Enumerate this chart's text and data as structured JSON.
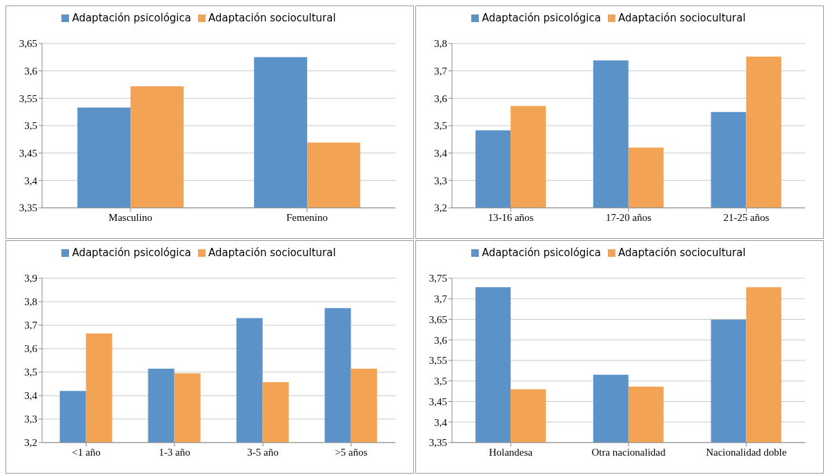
{
  "chart_data": [
    {
      "type": "bar",
      "categories": [
        "Masculino",
        "Femenino"
      ],
      "series": [
        {
          "name": "Adaptación psicológica",
          "color": "#5b93c9",
          "values": [
            3.533,
            3.625
          ]
        },
        {
          "name": "Adaptación sociocultural",
          "color": "#f2a354",
          "values": [
            3.572,
            3.469
          ]
        }
      ],
      "ylim": [
        3.35,
        3.65
      ],
      "yticks": [
        {
          "value": 3.35,
          "label": "3,35"
        },
        {
          "value": 3.4,
          "label": "3,4"
        },
        {
          "value": 3.45,
          "label": "3,45"
        },
        {
          "value": 3.5,
          "label": "3,5"
        },
        {
          "value": 3.55,
          "label": "3,55"
        },
        {
          "value": 3.6,
          "label": "3,6"
        },
        {
          "value": 3.65,
          "label": "3,65"
        }
      ],
      "grid": "y",
      "legend": "top"
    },
    {
      "type": "bar",
      "categories": [
        "13-16 años",
        "17-20 años",
        "21-25 años"
      ],
      "series": [
        {
          "name": "Adaptación psicológica",
          "color": "#5b93c9",
          "values": [
            3.483,
            3.738,
            3.55
          ]
        },
        {
          "name": "Adaptación sociocultural",
          "color": "#f2a354",
          "values": [
            3.572,
            3.42,
            3.752
          ]
        }
      ],
      "ylim": [
        3.2,
        3.8
      ],
      "yticks": [
        {
          "value": 3.2,
          "label": "3,2"
        },
        {
          "value": 3.3,
          "label": "3,3"
        },
        {
          "value": 3.4,
          "label": "3,4"
        },
        {
          "value": 3.5,
          "label": "3,5"
        },
        {
          "value": 3.6,
          "label": "3,6"
        },
        {
          "value": 3.7,
          "label": "3,7"
        },
        {
          "value": 3.8,
          "label": "3,8"
        }
      ],
      "grid": "y",
      "legend": "top"
    },
    {
      "type": "bar",
      "categories": [
        "<1 año",
        "1-3 año",
        "3-5 año",
        ">5 años"
      ],
      "series": [
        {
          "name": "Adaptación psicológica",
          "color": "#5b93c9",
          "values": [
            3.42,
            3.515,
            3.73,
            3.773
          ]
        },
        {
          "name": "Adaptación sociocultural",
          "color": "#f2a354",
          "values": [
            3.665,
            3.495,
            3.457,
            3.515
          ]
        }
      ],
      "ylim": [
        3.2,
        3.9
      ],
      "yticks": [
        {
          "value": 3.2,
          "label": "3,2"
        },
        {
          "value": 3.3,
          "label": "3,3"
        },
        {
          "value": 3.4,
          "label": "3,4"
        },
        {
          "value": 3.5,
          "label": "3,5"
        },
        {
          "value": 3.6,
          "label": "3,6"
        },
        {
          "value": 3.7,
          "label": "3,7"
        },
        {
          "value": 3.8,
          "label": "3,8"
        },
        {
          "value": 3.9,
          "label": "3,9"
        }
      ],
      "grid": "y",
      "legend": "top"
    },
    {
      "type": "bar",
      "categories": [
        "Holandesa",
        "Otra nacionalidad",
        "Nacionalidad doble"
      ],
      "series": [
        {
          "name": "Adaptación psicológica",
          "color": "#5b93c9",
          "values": [
            3.728,
            3.515,
            3.649
          ]
        },
        {
          "name": "Adaptación sociocultural",
          "color": "#f2a354",
          "values": [
            3.48,
            3.486,
            3.728
          ]
        }
      ],
      "ylim": [
        3.35,
        3.75
      ],
      "yticks": [
        {
          "value": 3.35,
          "label": "3,35"
        },
        {
          "value": 3.4,
          "label": "3,4"
        },
        {
          "value": 3.45,
          "label": "3,45"
        },
        {
          "value": 3.5,
          "label": "3,5"
        },
        {
          "value": 3.55,
          "label": "3,55"
        },
        {
          "value": 3.6,
          "label": "3,6"
        },
        {
          "value": 3.65,
          "label": "3,65"
        },
        {
          "value": 3.7,
          "label": "3,7"
        },
        {
          "value": 3.75,
          "label": "3,75"
        }
      ],
      "grid": "y",
      "legend": "top"
    }
  ]
}
